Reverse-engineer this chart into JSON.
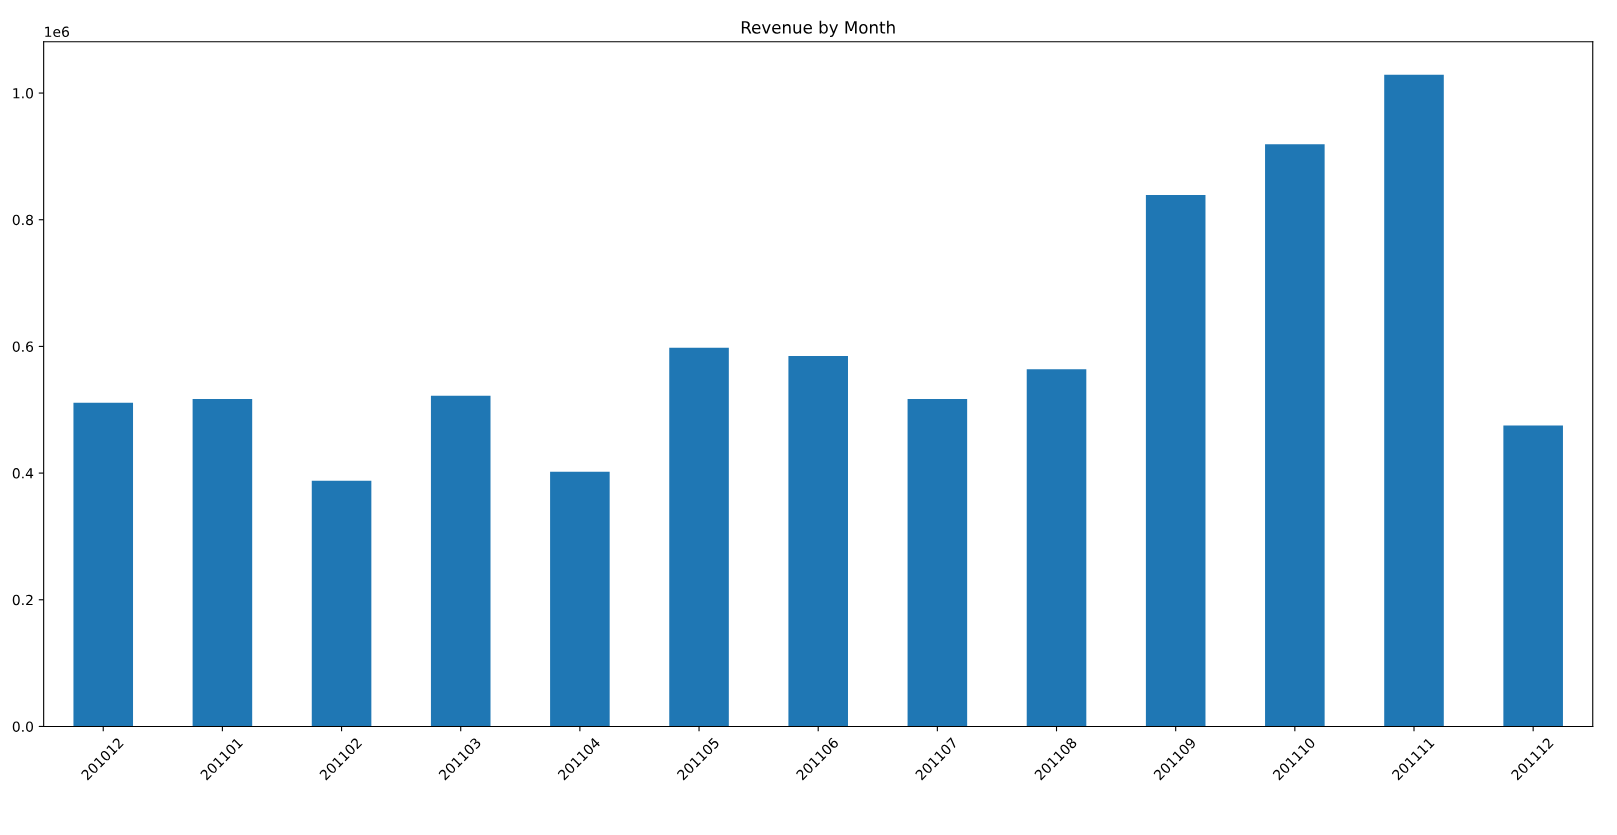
{
  "chart_data": {
    "type": "bar",
    "title": "Revenue by Month",
    "categories": [
      "201012",
      "201101",
      "201102",
      "201103",
      "201104",
      "201105",
      "201106",
      "201107",
      "201108",
      "201109",
      "201110",
      "201111",
      "201112"
    ],
    "values": [
      0.511,
      0.517,
      0.388,
      0.522,
      0.402,
      0.598,
      0.585,
      0.517,
      0.564,
      0.839,
      0.919,
      1.029,
      0.475
    ],
    "color": "#1f77b4",
    "ylim": [
      0,
      1.081
    ],
    "yticks": [
      {
        "value": 0,
        "label": "0.0"
      },
      0.2,
      0.4,
      0.6,
      0.8,
      {
        "value": 1,
        "label": "1.0"
      }
    ],
    "annotations": [
      "1e6"
    ]
  }
}
